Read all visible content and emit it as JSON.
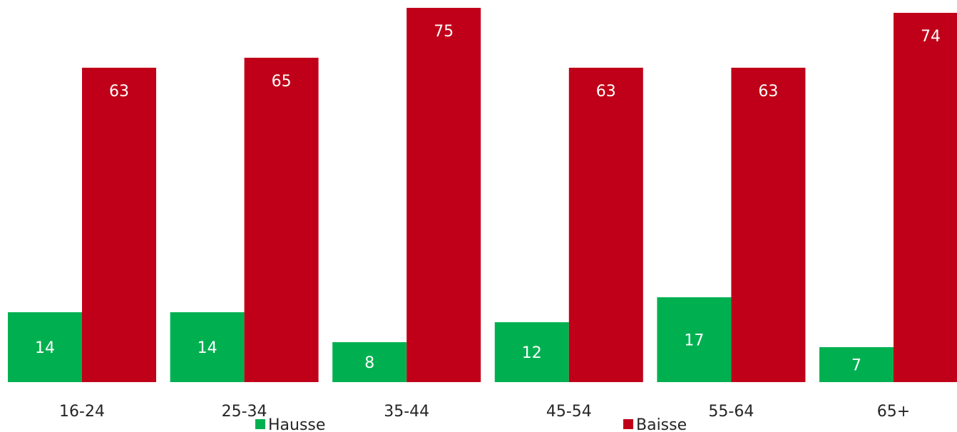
{
  "chart_data": {
    "type": "bar",
    "categories": [
      "16-24",
      "25-34",
      "35-44",
      "45-54",
      "55-64",
      "65+"
    ],
    "series": [
      {
        "name": "Hausse",
        "values": [
          14,
          14,
          8,
          12,
          17,
          7
        ],
        "color": "#00b050"
      },
      {
        "name": "Baisse",
        "values": [
          63,
          65,
          75,
          63,
          63,
          74
        ],
        "color": "#c00018"
      }
    ],
    "title": "",
    "xlabel": "",
    "ylabel": "",
    "ylim": [
      0,
      75
    ],
    "grid": false,
    "legend_position": "bottom",
    "data_labels": true
  }
}
